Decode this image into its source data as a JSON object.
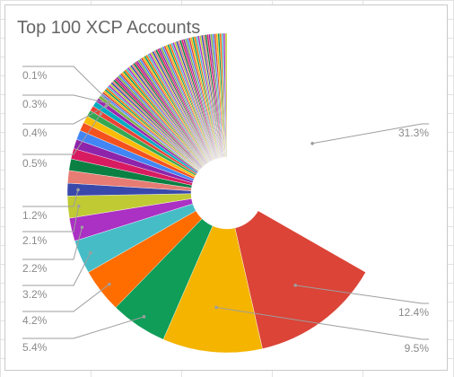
{
  "chart_data": {
    "type": "pie",
    "title": "Top 100 XCP Accounts",
    "pie_hole": true,
    "start_angle_deg": 0,
    "direction": "clockwise",
    "note_visible_segments_only": true,
    "slices": [
      {
        "value": 31.3,
        "color": "#ffffff",
        "label": "31.3%"
      },
      {
        "value": 12.4,
        "color": "#db4437",
        "label": "12.4%"
      },
      {
        "value": 9.5,
        "color": "#f4b400",
        "label": "9.5%"
      },
      {
        "value": 5.4,
        "color": "#0f9d58",
        "label": "5.4%"
      },
      {
        "value": 4.2,
        "color": "#ff6d00",
        "label": "4.2%"
      },
      {
        "value": 3.2,
        "color": "#46bdc6",
        "label": "3.2%"
      },
      {
        "value": 2.2,
        "color": "#ab30c4",
        "label": "2.2%"
      },
      {
        "value": 2.1,
        "color": "#c0ca33",
        "label": "2.1%"
      },
      {
        "value": 1.2,
        "color": "#3949ab",
        "label": "1.2%"
      },
      {
        "value": 1.2,
        "color": "#e67c73",
        "label": ""
      },
      {
        "value": 1.1,
        "color": "#0b8043",
        "label": ""
      },
      {
        "value": 1.0,
        "color": "#d81b60",
        "label": ""
      },
      {
        "value": 0.9,
        "color": "#8e24aa",
        "label": ""
      },
      {
        "value": 0.9,
        "color": "#4285f4",
        "label": ""
      },
      {
        "value": 0.8,
        "color": "#f4511e",
        "label": ""
      },
      {
        "value": 0.7,
        "color": "#fbbc04",
        "label": ""
      },
      {
        "value": 0.6,
        "color": "#34a853",
        "label": ""
      },
      {
        "value": 0.5,
        "color": "#ea4335",
        "label": "0.5%"
      },
      {
        "value": 0.5,
        "color": "#00acc1",
        "label": ""
      },
      {
        "value": 0.4,
        "color": "#9c27b0",
        "label": "0.4%"
      },
      {
        "value": 0.3,
        "color": "#7cb342",
        "label": "0.3%"
      },
      {
        "value": 0.1,
        "color": "#5c6bc0",
        "label": "0.1%"
      }
    ],
    "remaining_small_slices": {
      "total_value": 13.6,
      "palette": [
        "#4285f4",
        "#db4437",
        "#f4b400",
        "#0f9d58",
        "#ff6d00",
        "#46bdc6",
        "#ab30c4",
        "#c0ca33",
        "#3949ab",
        "#e67c73",
        "#0b8043",
        "#d81b60",
        "#8e24aa",
        "#7cb342"
      ]
    }
  }
}
